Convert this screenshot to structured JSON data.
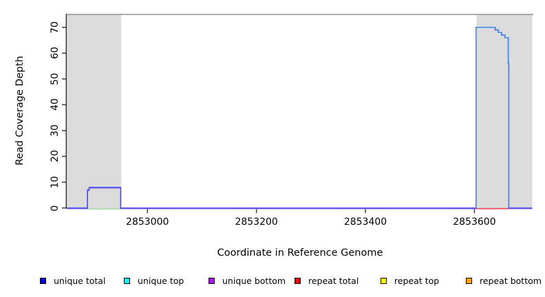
{
  "chart_data": {
    "type": "line",
    "title": "",
    "xlabel": "Coordinate in Reference Genome",
    "ylabel": "Read Coverage Depth",
    "xlim": [
      2852852,
      2853708
    ],
    "ylim": [
      0,
      75
    ],
    "x_ticks": [
      "2853000",
      "2853200",
      "2853400",
      "2853600"
    ],
    "x_tick_values": [
      2853000,
      2853200,
      2853400,
      2853600
    ],
    "y_ticks": [
      "0",
      "10",
      "20",
      "30",
      "40",
      "50",
      "60",
      "70"
    ],
    "y_tick_values": [
      0,
      10,
      20,
      30,
      40,
      50,
      60,
      70
    ],
    "grid": false,
    "background": "#FFFFFF",
    "axis_color": "#303030",
    "text_color": "#000000",
    "shaded_regions": [
      {
        "name": "left-repeat-region",
        "x0": 2852852,
        "x1": 2852952,
        "color": "#DCDCDC"
      },
      {
        "name": "right-repeat-region",
        "x0": 2853604,
        "x1": 2853706,
        "color": "#DCDCDC"
      }
    ],
    "top_border": {
      "y": 75,
      "color": "#909090"
    },
    "series": [
      {
        "name": "zero-line-green-segment",
        "color": "#98D798",
        "dy": 1.6,
        "width": 1.4,
        "points": [
          [
            2852890,
            0
          ],
          [
            2852951,
            0
          ]
        ]
      },
      {
        "name": "unique-bottom",
        "color": "#8A65E8",
        "dy": 1.0,
        "width": 1.5,
        "points": [
          [
            2852852,
            0
          ],
          [
            2852890,
            0
          ],
          [
            2852890,
            7
          ],
          [
            2852893,
            7
          ],
          [
            2852893,
            8
          ],
          [
            2852951,
            8
          ],
          [
            2852951,
            0
          ],
          [
            2853706,
            0
          ]
        ]
      },
      {
        "name": "unique-total",
        "color": "#4450F0",
        "dy": 0,
        "width": 1.5,
        "points": [
          [
            2852852,
            0
          ],
          [
            2852890,
            0
          ],
          [
            2852890,
            7
          ],
          [
            2852893,
            7
          ],
          [
            2852893,
            8
          ],
          [
            2852951,
            8
          ],
          [
            2852951,
            0
          ],
          [
            2853603,
            0
          ],
          [
            2853603,
            70
          ],
          [
            2853638,
            70
          ],
          [
            2853638,
            69
          ],
          [
            2853644,
            69
          ],
          [
            2853644,
            68
          ],
          [
            2853650,
            68
          ],
          [
            2853650,
            67
          ],
          [
            2853656,
            67
          ],
          [
            2853656,
            66
          ],
          [
            2853662,
            66
          ],
          [
            2853662,
            56
          ],
          [
            2853663,
            56
          ],
          [
            2853663,
            0
          ],
          [
            2853706,
            0
          ]
        ]
      },
      {
        "name": "unique-top-peak",
        "color": "#3E86EC",
        "dy": 0,
        "width": 1.5,
        "points": [
          [
            2853603,
            0
          ],
          [
            2853603,
            70
          ],
          [
            2853638,
            70
          ],
          [
            2853638,
            69
          ],
          [
            2853644,
            69
          ],
          [
            2853644,
            68
          ],
          [
            2853650,
            68
          ],
          [
            2853650,
            67
          ],
          [
            2853656,
            67
          ],
          [
            2853656,
            66
          ],
          [
            2853662,
            66
          ],
          [
            2853662,
            56
          ],
          [
            2853663,
            56
          ],
          [
            2853663,
            0
          ]
        ]
      },
      {
        "name": "repeat-total-segment",
        "color": "#EE4747",
        "dy": 1.0,
        "width": 1.5,
        "points": [
          [
            2853604,
            0
          ],
          [
            2853663,
            0
          ]
        ]
      }
    ],
    "legend": {
      "position": "bottom",
      "items": [
        {
          "label": "unique total",
          "color": "#0000FF"
        },
        {
          "label": "unique top",
          "color": "#00FFFF"
        },
        {
          "label": "unique bottom",
          "color": "#A020F0"
        },
        {
          "label": "repeat total",
          "color": "#FF0000"
        },
        {
          "label": "repeat top",
          "color": "#FFFF00"
        },
        {
          "label": "repeat bottom",
          "color": "#FFA500"
        }
      ]
    }
  }
}
